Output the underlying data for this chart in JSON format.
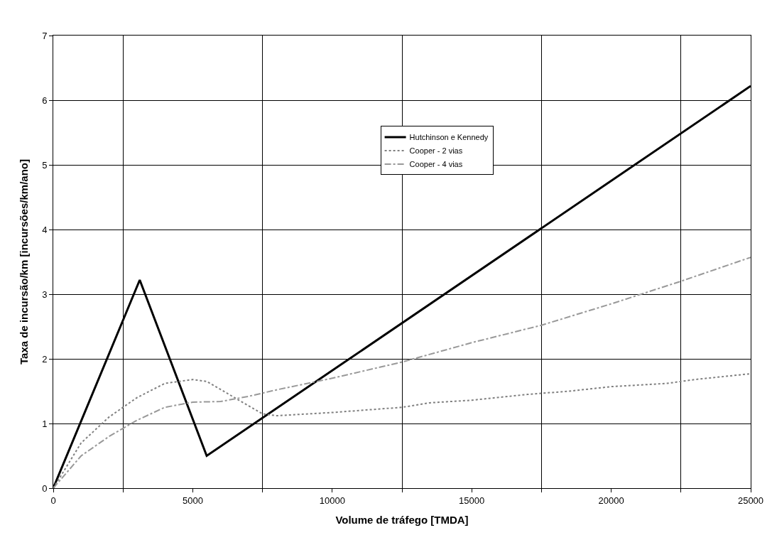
{
  "chart_data": {
    "type": "line",
    "xlabel": "Volume de tráfego [TMDA]",
    "ylabel": "Taxa de incursão/km [incursões/km/ano]",
    "xlim": [
      0,
      25000
    ],
    "xticks": [
      0,
      {
        "value": 2500,
        "label": null
      },
      5000,
      {
        "value": 7500,
        "label": null
      },
      10000,
      {
        "value": 12500,
        "label": null
      },
      15000,
      {
        "value": 17500,
        "label": null
      },
      20000,
      {
        "value": 22500,
        "label": null
      },
      25000
    ],
    "ylim": [
      0,
      7
    ],
    "yticks": [
      0,
      1,
      2,
      3,
      4,
      5,
      6,
      7
    ],
    "grid": true,
    "legend": "top",
    "marker": "none",
    "series": [
      {
        "name": "Hutchinson e Kennedy",
        "color": "#000000",
        "line_style": "solid",
        "x": [
          0,
          3100,
          5500,
          25000
        ],
        "values": [
          0,
          3.22,
          0.5,
          6.22
        ]
      },
      {
        "name": "Cooper - 2 vias",
        "color": "#808080",
        "line_style": "dotted",
        "x": [
          0,
          1000,
          2000,
          3000,
          4000,
          5000,
          5500,
          6500,
          7500,
          8000,
          10000,
          12500,
          13500,
          15000,
          17000,
          18500,
          20000,
          22000,
          23000,
          25000
        ],
        "values": [
          0,
          0.7,
          1.1,
          1.4,
          1.62,
          1.68,
          1.65,
          1.4,
          1.15,
          1.12,
          1.17,
          1.25,
          1.32,
          1.36,
          1.45,
          1.5,
          1.57,
          1.62,
          1.68,
          1.77
        ]
      },
      {
        "name": "Cooper - 4 vias",
        "color": "#999999",
        "line_style": "dashed",
        "x": [
          0,
          1000,
          2000,
          3000,
          4000,
          5000,
          6000,
          7000,
          8000,
          10000,
          12500,
          15000,
          17500,
          20000,
          22500,
          25000
        ],
        "values": [
          0,
          0.5,
          0.8,
          1.05,
          1.25,
          1.33,
          1.34,
          1.42,
          1.52,
          1.7,
          1.95,
          2.25,
          2.52,
          2.85,
          3.2,
          3.57
        ]
      }
    ]
  }
}
